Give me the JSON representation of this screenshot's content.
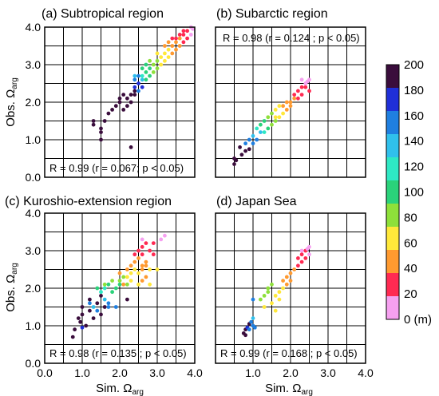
{
  "figure": {
    "ylabel_prefix": "Obs. Ω",
    "xlabel_prefix": "Sim. Ω",
    "label_subscript": "arg",
    "colorbar": {
      "ticks": [
        "200",
        "180",
        "160",
        "140",
        "120",
        "100",
        "80",
        "60",
        "40",
        "20",
        "0 (m)"
      ],
      "colors": [
        "#3a0d3c",
        "#1f2fd8",
        "#1f7fe0",
        "#30c0ec",
        "#2ee8c4",
        "#2ad27a",
        "#8ee03a",
        "#ffe83a",
        "#ff9a30",
        "#ff2a52",
        "#f6a0f0"
      ]
    }
  },
  "chart_data": [
    {
      "type": "scatter",
      "title": "(a) Subtropical region",
      "stat_text": "R = 0.99 (r = 0.067; p < 0.05)",
      "xlim": [
        0,
        4
      ],
      "ylim": [
        0,
        4
      ],
      "grid": true,
      "x_ticks": [],
      "y_ticks": [
        "0.0",
        "1.0",
        "2.0",
        "3.0",
        "4.0"
      ],
      "points": [
        [
          1.3,
          1.5,
          200
        ],
        [
          1.3,
          1.4,
          200
        ],
        [
          1.5,
          1.2,
          200
        ],
        [
          1.5,
          1.0,
          200
        ],
        [
          1.7,
          1.7,
          200
        ],
        [
          1.8,
          1.8,
          200
        ],
        [
          1.9,
          1.9,
          200
        ],
        [
          2.0,
          2.0,
          200
        ],
        [
          2.0,
          2.1,
          200
        ],
        [
          2.1,
          2.2,
          200
        ],
        [
          2.2,
          2.1,
          200
        ],
        [
          2.3,
          2.2,
          200
        ],
        [
          2.4,
          2.3,
          190
        ],
        [
          2.1,
          1.8,
          200
        ],
        [
          2.2,
          1.9,
          200
        ],
        [
          2.3,
          2.0,
          200
        ],
        [
          2.4,
          2.2,
          200
        ],
        [
          1.5,
          1.3,
          200
        ],
        [
          1.6,
          1.5,
          200
        ],
        [
          2.3,
          0.8,
          200
        ],
        [
          2.4,
          2.4,
          180
        ],
        [
          2.5,
          2.5,
          170
        ],
        [
          2.4,
          2.6,
          160
        ],
        [
          2.5,
          2.7,
          150
        ],
        [
          2.6,
          2.6,
          140
        ],
        [
          2.5,
          2.3,
          160
        ],
        [
          2.6,
          2.4,
          170
        ],
        [
          2.6,
          2.7,
          110
        ],
        [
          2.7,
          2.8,
          100
        ],
        [
          2.8,
          2.9,
          90
        ],
        [
          2.9,
          3.0,
          80
        ],
        [
          2.8,
          2.7,
          90
        ],
        [
          2.7,
          2.6,
          100
        ],
        [
          2.9,
          2.8,
          80
        ],
        [
          3.0,
          2.9,
          70
        ],
        [
          3.0,
          3.1,
          70
        ],
        [
          3.1,
          3.2,
          60
        ],
        [
          3.2,
          3.3,
          55
        ],
        [
          3.3,
          3.4,
          50
        ],
        [
          3.1,
          3.0,
          60
        ],
        [
          3.2,
          3.1,
          60
        ],
        [
          3.3,
          3.2,
          50
        ],
        [
          3.4,
          3.3,
          45
        ],
        [
          3.4,
          3.5,
          40
        ],
        [
          3.5,
          3.6,
          35
        ],
        [
          3.6,
          3.7,
          30
        ],
        [
          3.5,
          3.4,
          35
        ],
        [
          3.6,
          3.5,
          30
        ],
        [
          3.7,
          3.6,
          25
        ],
        [
          3.7,
          3.8,
          20
        ],
        [
          3.8,
          3.7,
          20
        ],
        [
          3.8,
          3.9,
          10
        ],
        [
          3.9,
          3.8,
          5
        ],
        [
          3.9,
          4.0,
          5
        ],
        [
          3.7,
          3.9,
          10
        ],
        [
          3.95,
          3.95,
          0
        ],
        [
          3.6,
          3.8,
          15
        ],
        [
          3.5,
          3.7,
          20
        ],
        [
          3.2,
          3.5,
          40
        ],
        [
          3.0,
          3.3,
          60
        ],
        [
          2.8,
          3.1,
          80
        ],
        [
          2.6,
          2.9,
          100
        ],
        [
          2.4,
          2.7,
          130
        ],
        [
          2.7,
          3.0,
          90
        ],
        [
          3.3,
          3.6,
          30
        ],
        [
          3.4,
          3.7,
          25
        ]
      ]
    },
    {
      "type": "scatter",
      "title": "(b) Subarctic region",
      "stat_text": "R = 0.98 (r = 0.124 ; p < 0.05)",
      "xlim": [
        0,
        4
      ],
      "ylim": [
        0,
        4
      ],
      "grid": true,
      "x_ticks": [],
      "y_ticks": [],
      "points": [
        [
          0.5,
          0.35,
          200
        ],
        [
          0.55,
          0.45,
          200
        ],
        [
          0.7,
          0.6,
          200
        ],
        [
          0.8,
          0.7,
          200
        ],
        [
          0.9,
          0.75,
          190
        ],
        [
          0.5,
          0.5,
          200
        ],
        [
          0.65,
          0.8,
          200
        ],
        [
          0.8,
          0.9,
          160
        ],
        [
          0.9,
          1.0,
          150
        ],
        [
          1.0,
          1.1,
          140
        ],
        [
          1.1,
          1.0,
          150
        ],
        [
          1.0,
          0.9,
          160
        ],
        [
          1.2,
          1.2,
          130
        ],
        [
          1.1,
          1.3,
          120
        ],
        [
          1.3,
          1.2,
          110
        ],
        [
          1.2,
          1.4,
          100
        ],
        [
          1.4,
          1.3,
          100
        ],
        [
          1.3,
          1.5,
          90
        ],
        [
          1.5,
          1.4,
          80
        ],
        [
          1.4,
          1.6,
          80
        ],
        [
          1.6,
          1.5,
          70
        ],
        [
          1.7,
          1.6,
          60
        ],
        [
          1.6,
          1.8,
          60
        ],
        [
          1.8,
          1.7,
          55
        ],
        [
          1.5,
          1.7,
          70
        ],
        [
          1.8,
          1.9,
          40
        ],
        [
          1.9,
          2.0,
          35
        ],
        [
          2.0,
          2.0,
          30
        ],
        [
          2.0,
          1.9,
          40
        ],
        [
          2.1,
          2.1,
          30
        ],
        [
          1.9,
          1.8,
          45
        ],
        [
          1.7,
          1.9,
          50
        ],
        [
          1.6,
          1.6,
          60
        ],
        [
          2.1,
          2.2,
          20
        ],
        [
          2.2,
          2.3,
          15
        ],
        [
          2.3,
          2.4,
          10
        ],
        [
          2.2,
          2.1,
          25
        ],
        [
          2.3,
          2.2,
          20
        ],
        [
          2.4,
          2.4,
          10
        ],
        [
          2.5,
          2.6,
          5
        ],
        [
          2.4,
          2.5,
          5
        ],
        [
          2.3,
          2.6,
          5
        ],
        [
          2.5,
          2.3,
          10
        ],
        [
          2.45,
          2.55,
          0
        ]
      ]
    },
    {
      "type": "scatter",
      "title": "(c) Kuroshio-extension region",
      "stat_text": "R = 0.98 (r = 0.135 ; p < 0.05)",
      "xlim": [
        0,
        4
      ],
      "ylim": [
        0,
        4
      ],
      "grid": true,
      "x_ticks": [
        "0.0",
        "1.0",
        "2.0",
        "3.0",
        "4.0"
      ],
      "y_ticks": [
        "0.0",
        "1.0",
        "2.0",
        "3.0",
        "4.0"
      ],
      "points": [
        [
          0.75,
          0.7,
          200
        ],
        [
          0.8,
          0.9,
          200
        ],
        [
          0.9,
          1.2,
          200
        ],
        [
          1.0,
          1.3,
          200
        ],
        [
          1.0,
          1.5,
          200
        ],
        [
          1.2,
          1.4,
          200
        ],
        [
          1.3,
          1.2,
          200
        ],
        [
          1.4,
          1.6,
          190
        ],
        [
          1.5,
          1.8,
          200
        ],
        [
          1.6,
          1.5,
          200
        ],
        [
          1.5,
          1.3,
          200
        ],
        [
          1.2,
          1.7,
          200
        ],
        [
          2.2,
          1.7,
          200
        ],
        [
          1.1,
          1.0,
          200
        ],
        [
          0.95,
          1.1,
          200
        ],
        [
          1.0,
          0.95,
          170
        ],
        [
          1.2,
          1.6,
          160
        ],
        [
          1.4,
          1.4,
          150
        ],
        [
          1.6,
          1.7,
          140
        ],
        [
          1.7,
          1.6,
          150
        ],
        [
          1.9,
          1.5,
          160
        ],
        [
          1.3,
          1.5,
          140
        ],
        [
          1.7,
          1.5,
          150
        ],
        [
          1.5,
          1.9,
          120
        ],
        [
          1.6,
          2.0,
          110
        ],
        [
          1.8,
          1.9,
          100
        ],
        [
          1.7,
          2.1,
          90
        ],
        [
          1.9,
          2.0,
          100
        ],
        [
          2.0,
          2.1,
          90
        ],
        [
          1.4,
          2.0,
          90
        ],
        [
          2.0,
          2.2,
          80
        ],
        [
          2.1,
          2.3,
          70
        ],
        [
          1.8,
          2.2,
          70
        ],
        [
          2.2,
          2.3,
          65
        ],
        [
          2.2,
          2.1,
          70
        ],
        [
          1.6,
          2.1,
          75
        ],
        [
          2.3,
          2.4,
          55
        ],
        [
          2.4,
          2.5,
          50
        ],
        [
          2.5,
          2.4,
          50
        ],
        [
          2.6,
          2.6,
          45
        ],
        [
          2.5,
          2.1,
          50
        ],
        [
          2.6,
          2.2,
          45
        ],
        [
          2.3,
          2.2,
          55
        ],
        [
          2.8,
          2.5,
          50
        ],
        [
          3.0,
          2.5,
          50
        ],
        [
          2.7,
          2.3,
          45
        ],
        [
          2.8,
          2.1,
          50
        ],
        [
          2.4,
          2.7,
          35
        ],
        [
          2.5,
          2.8,
          30
        ],
        [
          2.6,
          2.9,
          25
        ],
        [
          2.7,
          2.7,
          30
        ],
        [
          2.2,
          2.5,
          35
        ],
        [
          2.1,
          2.1,
          35
        ],
        [
          2.3,
          2.6,
          30
        ],
        [
          2.6,
          2.5,
          30
        ],
        [
          2.0,
          2.4,
          35
        ],
        [
          2.7,
          2.6,
          30
        ],
        [
          2.5,
          3.0,
          15
        ],
        [
          2.6,
          3.1,
          10
        ],
        [
          2.7,
          3.2,
          10
        ],
        [
          2.8,
          3.0,
          15
        ],
        [
          2.9,
          2.9,
          15
        ],
        [
          3.1,
          3.3,
          5
        ],
        [
          3.2,
          3.4,
          5
        ],
        [
          2.6,
          3.3,
          5
        ],
        [
          2.4,
          2.9,
          15
        ],
        [
          2.9,
          3.2,
          10
        ]
      ]
    },
    {
      "type": "scatter",
      "title": "(d) Japan Sea",
      "stat_text": "R = 0.99 (r = 0.168 ; p < 0.05)",
      "xlim": [
        0,
        4
      ],
      "ylim": [
        0,
        4
      ],
      "grid": true,
      "x_ticks": [
        "1.0",
        "2.0",
        "3.0",
        "4.0"
      ],
      "y_ticks": [],
      "points": [
        [
          0.75,
          0.8,
          200
        ],
        [
          0.8,
          0.9,
          200
        ],
        [
          0.85,
          0.95,
          180
        ],
        [
          0.9,
          1.05,
          190
        ],
        [
          0.8,
          0.75,
          200
        ],
        [
          0.9,
          0.9,
          160
        ],
        [
          1.0,
          1.0,
          150
        ],
        [
          1.0,
          1.2,
          140
        ],
        [
          0.95,
          1.1,
          150
        ],
        [
          1.05,
          0.95,
          160
        ],
        [
          1.0,
          1.7,
          150
        ],
        [
          1.2,
          1.7,
          80
        ],
        [
          1.3,
          1.8,
          70
        ],
        [
          1.4,
          2.0,
          80
        ],
        [
          1.5,
          2.1,
          70
        ],
        [
          1.3,
          1.5,
          60
        ],
        [
          1.4,
          1.9,
          75
        ],
        [
          1.5,
          1.6,
          55
        ],
        [
          1.6,
          1.8,
          50
        ],
        [
          1.7,
          1.9,
          55
        ],
        [
          1.6,
          1.4,
          60
        ],
        [
          1.7,
          1.7,
          50
        ],
        [
          1.8,
          2.0,
          50
        ],
        [
          1.8,
          2.2,
          40
        ],
        [
          1.9,
          2.3,
          35
        ],
        [
          2.0,
          2.4,
          30
        ],
        [
          2.0,
          2.2,
          35
        ],
        [
          2.1,
          2.5,
          30
        ],
        [
          2.2,
          2.6,
          25
        ],
        [
          2.3,
          2.7,
          25
        ],
        [
          1.9,
          2.1,
          40
        ],
        [
          2.2,
          2.8,
          15
        ],
        [
          2.3,
          2.9,
          10
        ],
        [
          2.4,
          3.0,
          10
        ],
        [
          2.5,
          3.1,
          5
        ],
        [
          2.4,
          2.8,
          10
        ],
        [
          2.5,
          2.9,
          5
        ],
        [
          2.3,
          3.0,
          5
        ],
        [
          2.45,
          3.05,
          0
        ]
      ]
    }
  ]
}
